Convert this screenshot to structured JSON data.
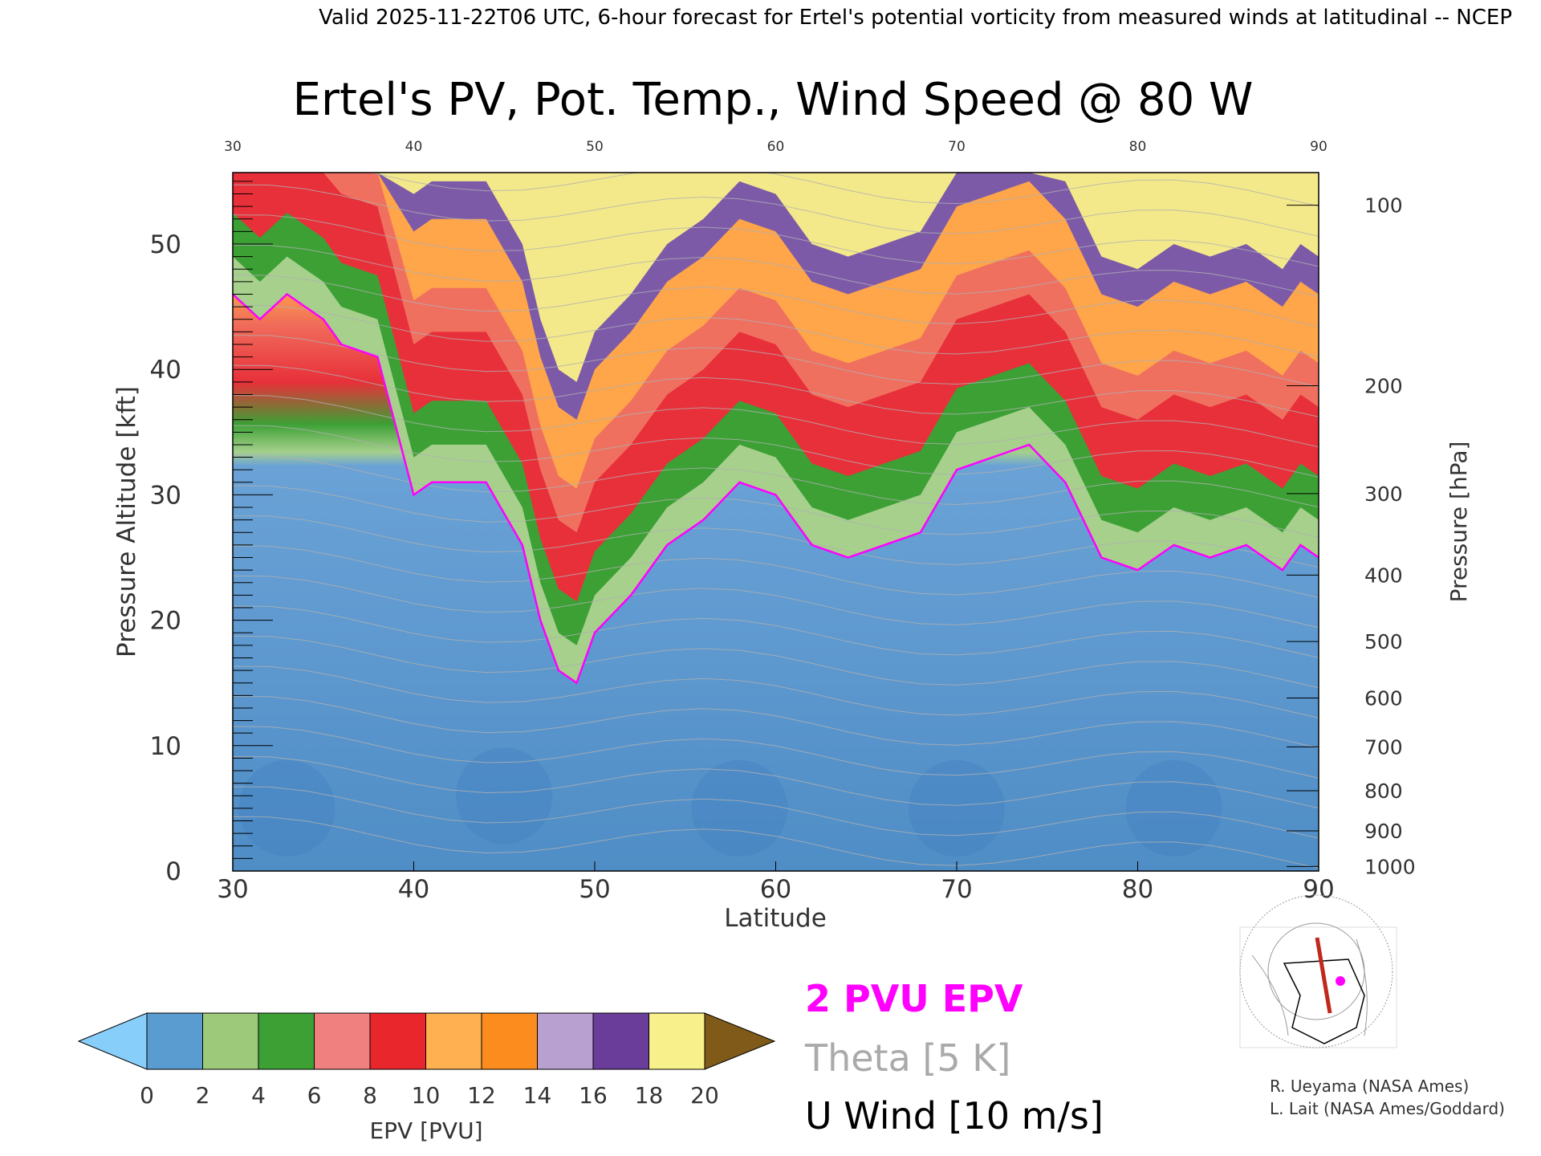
{
  "header": "Valid 2025-11-22T06 UTC, 6-hour forecast for Ertel's potential vorticity from measured winds at latitudinal -- NCEP",
  "chart_data": {
    "type": "heatmap",
    "title": "Ertel's PV, Pot. Temp., Wind Speed @ 80 W",
    "xlabel": "Latitude",
    "ylabel": "Pressure Altitude [kft]",
    "y2label": "Pressure [hPa]",
    "xlim": [
      30,
      90
    ],
    "ylim": [
      0,
      55.7
    ],
    "x_ticks": [
      "30",
      "40",
      "50",
      "60",
      "70",
      "80",
      "90"
    ],
    "y_ticks": [
      "0",
      "10",
      "20",
      "30",
      "40",
      "50"
    ],
    "y_tick_values": [
      0,
      10,
      20,
      30,
      40,
      50
    ],
    "pressure_ticks": [
      {
        "label": "100",
        "kft": 53.1
      },
      {
        "label": "200",
        "kft": 38.7
      },
      {
        "label": "300",
        "kft": 30.1
      },
      {
        "label": "400",
        "kft": 23.6
      },
      {
        "label": "500",
        "kft": 18.3
      },
      {
        "label": "600",
        "kft": 13.8
      },
      {
        "label": "700",
        "kft": 9.9
      },
      {
        "label": "800",
        "kft": 6.4
      },
      {
        "label": "900",
        "kft": 3.2
      },
      {
        "label": "1000",
        "kft": 0.36
      }
    ],
    "tropopause_2pvu": {
      "lat": [
        30,
        31.5,
        33,
        35,
        36,
        38,
        40,
        41,
        43,
        44,
        46,
        47,
        48,
        49,
        50,
        52,
        54,
        56,
        58,
        60,
        62,
        64,
        66,
        68,
        70,
        72,
        74,
        76,
        78,
        80,
        82,
        84,
        86,
        88,
        89,
        90
      ],
      "kft": [
        46,
        44,
        46,
        44,
        42,
        41,
        30,
        31,
        31,
        31,
        26,
        20,
        16,
        15,
        19,
        22,
        26,
        28,
        31,
        30,
        26,
        25,
        26,
        27,
        32,
        33,
        34,
        31,
        25,
        24,
        26,
        25,
        26,
        24,
        26,
        25
      ]
    },
    "colorbar": {
      "label": "EPV [PVU]",
      "ticks": [
        "0",
        "2",
        "4",
        "6",
        "8",
        "10",
        "12",
        "14",
        "16",
        "18",
        "20"
      ],
      "colors": [
        "#5a9bd0",
        "#9cca7a",
        "#3ca035",
        "#f08080",
        "#e8262c",
        "#ffb050",
        "#fb8c1d",
        "#b8a0d0",
        "#6a3d9a",
        "#f8f08a"
      ],
      "under_color": "#87cefa",
      "over_color": "#7f5a19"
    }
  },
  "legend": {
    "pv_line": "2 PVU EPV",
    "theta": "Theta [5 K]",
    "wind": "U Wind [10 m/s]",
    "pv_color": "#ff00ff",
    "theta_color": "#aaaaaa"
  },
  "credits": [
    "R. Ueyama (NASA Ames)",
    "L. Lait (NASA Ames/Goddard)"
  ]
}
